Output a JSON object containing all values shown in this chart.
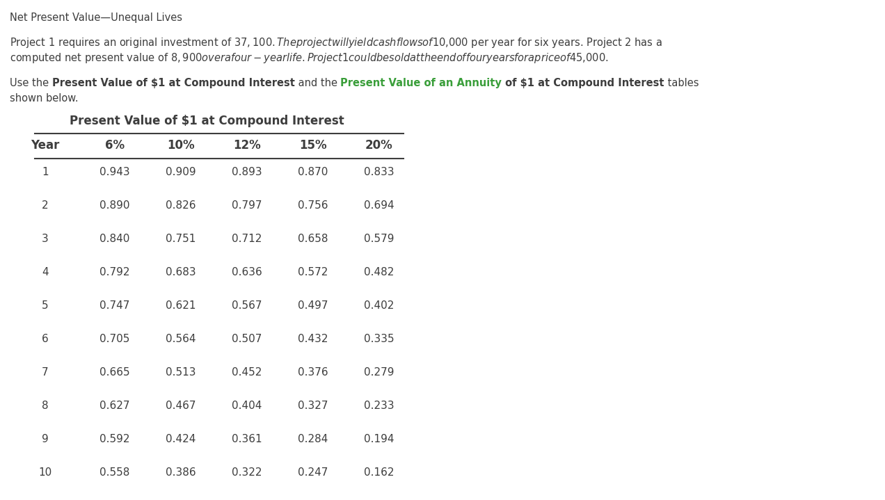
{
  "title_line": "Net Present Value—Unequal Lives",
  "para1_line1": "Project 1 requires an original investment of $37,100. The project will yield cash flows of $10,000 per year for six years. Project 2 has a",
  "para1_line2": "computed net present value of $8,900 over a four-year life. Project 1 could be sold at the end of four years for a price of $45,000.",
  "table_title": "Present Value of $1 at Compound Interest",
  "headers": [
    "Year",
    "6%",
    "10%",
    "12%",
    "15%",
    "20%"
  ],
  "rows": [
    [
      "1",
      "0.943",
      "0.909",
      "0.893",
      "0.870",
      "0.833"
    ],
    [
      "2",
      "0.890",
      "0.826",
      "0.797",
      "0.756",
      "0.694"
    ],
    [
      "3",
      "0.840",
      "0.751",
      "0.712",
      "0.658",
      "0.579"
    ],
    [
      "4",
      "0.792",
      "0.683",
      "0.636",
      "0.572",
      "0.482"
    ],
    [
      "5",
      "0.747",
      "0.621",
      "0.567",
      "0.497",
      "0.402"
    ],
    [
      "6",
      "0.705",
      "0.564",
      "0.507",
      "0.432",
      "0.335"
    ],
    [
      "7",
      "0.665",
      "0.513",
      "0.452",
      "0.376",
      "0.279"
    ],
    [
      "8",
      "0.627",
      "0.467",
      "0.404",
      "0.327",
      "0.233"
    ],
    [
      "9",
      "0.592",
      "0.424",
      "0.361",
      "0.284",
      "0.194"
    ],
    [
      "10",
      "0.558",
      "0.386",
      "0.322",
      "0.247",
      "0.162"
    ]
  ],
  "bg_color": "#ffffff",
  "text_color": "#3d3d3d",
  "green_color": "#3a9e3a",
  "title_fontsize": 10.5,
  "body_fontsize": 10.5,
  "table_data_fontsize": 11,
  "table_header_fontsize": 12,
  "table_title_fontsize": 12
}
